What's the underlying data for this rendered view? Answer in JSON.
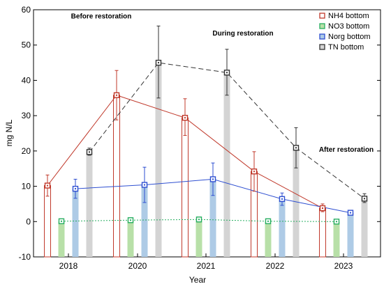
{
  "chart_data": {
    "type": "bar",
    "xlabel": "Year",
    "ylabel": "mg N/L",
    "ylim": [
      -10,
      60
    ],
    "yticks": [
      -10,
      0,
      10,
      20,
      30,
      40,
      50,
      60
    ],
    "categories": [
      "2018",
      "2020",
      "2021",
      "2022",
      "2023"
    ],
    "grid": false,
    "legend_position": "top-right",
    "series": [
      {
        "name": "NH4 bottom",
        "color": "#c0392b",
        "fill": "#ffffff",
        "line": "solid",
        "values": [
          10.2,
          35.8,
          29.4,
          14.2,
          3.8
        ],
        "err_low": [
          7.2,
          28.8,
          24.4,
          8.6,
          2.8
        ],
        "err_high": [
          13.2,
          42.8,
          34.8,
          19.8,
          5.0
        ]
      },
      {
        "name": "NO3 bottom",
        "color": "#27ae60",
        "fill": "#b8e0a8",
        "line": "dotted",
        "values": [
          0.1,
          0.4,
          0.6,
          0.1,
          0.0
        ],
        "err_low": [
          0.0,
          0.1,
          0.2,
          0.0,
          0.0
        ],
        "err_high": [
          0.3,
          0.7,
          1.0,
          0.3,
          0.2
        ]
      },
      {
        "name": "Norg bottom",
        "color": "#2e4fd1",
        "fill": "#aecbe6",
        "line": "solid",
        "values": [
          9.3,
          10.4,
          12.0,
          6.4,
          2.5
        ],
        "err_low": [
          6.6,
          5.4,
          7.4,
          4.6,
          2.0
        ],
        "err_high": [
          12.0,
          15.4,
          16.6,
          8.1,
          2.9
        ]
      },
      {
        "name": "TN bottom",
        "color": "#333333",
        "fill": "#d4d4d4",
        "line": "dashed",
        "values": [
          19.7,
          45.0,
          42.2,
          20.9,
          6.5
        ],
        "err_low": [
          18.8,
          35.0,
          35.8,
          15.2,
          5.4
        ],
        "err_high": [
          20.8,
          55.4,
          48.8,
          26.6,
          7.9
        ]
      }
    ],
    "annotations": [
      {
        "text": "Before restoration",
        "x_between": [
          "2018",
          "2020"
        ],
        "y": 57.5
      },
      {
        "text": "During restoration",
        "x_between": [
          "2021",
          "2021"
        ],
        "y": 52.7
      },
      {
        "text": "After restoration",
        "x_between": [
          "2022",
          "2023"
        ],
        "y": 19.8
      }
    ]
  }
}
